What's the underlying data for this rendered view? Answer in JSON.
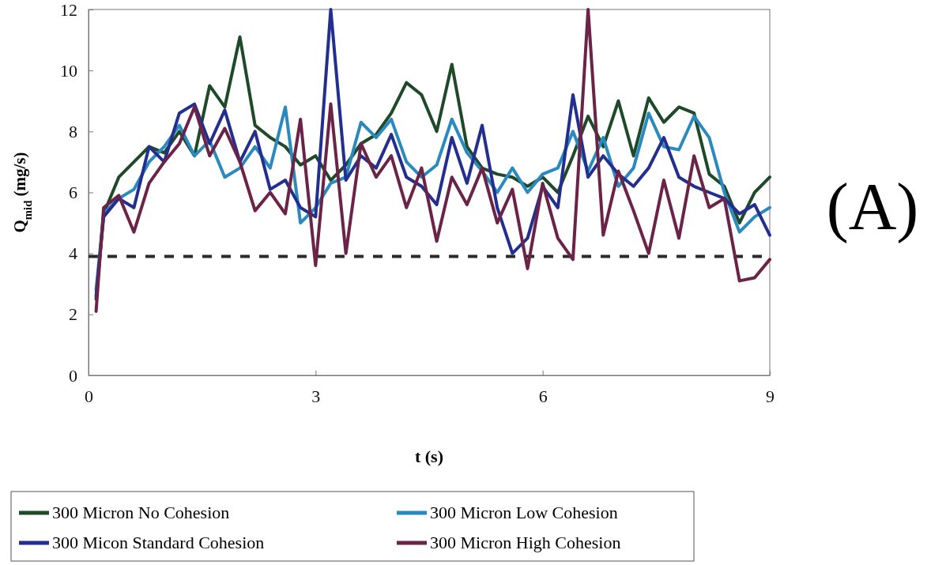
{
  "chart_data": {
    "type": "line",
    "xlabel": "t (s)",
    "ylabel": "Q$_{mid}$ (mg/s)",
    "x": [
      0.1,
      0.2,
      0.4,
      0.6,
      0.8,
      1.0,
      1.2,
      1.4,
      1.6,
      1.8,
      2.0,
      2.2,
      2.4,
      2.6,
      2.8,
      3.0,
      3.2,
      3.4,
      3.6,
      3.8,
      4.0,
      4.2,
      4.4,
      4.6,
      4.8,
      5.0,
      5.2,
      5.4,
      5.6,
      5.8,
      6.0,
      6.2,
      6.4,
      6.6,
      6.8,
      7.0,
      7.2,
      7.4,
      7.6,
      7.8,
      8.0,
      8.2,
      8.4,
      8.6,
      8.8,
      9.0
    ],
    "series": [
      {
        "name": "300 Micron No Cohesion",
        "color": "#1e4a2a",
        "values": [
          2.5,
          5.3,
          6.5,
          7.0,
          7.5,
          7.3,
          8.0,
          7.2,
          9.5,
          8.8,
          11.1,
          8.2,
          7.8,
          7.5,
          6.9,
          7.2,
          6.4,
          6.9,
          7.6,
          7.9,
          8.6,
          9.6,
          9.2,
          8.0,
          10.2,
          7.5,
          6.8,
          6.6,
          6.5,
          6.2,
          6.5,
          6.0,
          7.2,
          8.5,
          7.5,
          9.0,
          7.2,
          9.1,
          8.3,
          8.8,
          8.6,
          6.6,
          6.2,
          5.0,
          6.0,
          6.5
        ]
      },
      {
        "name": "300 Micron Low Cohesion",
        "color": "#2a8ac0",
        "values": [
          2.8,
          5.3,
          5.8,
          6.1,
          7.0,
          7.5,
          8.2,
          7.2,
          7.7,
          6.5,
          6.8,
          7.5,
          6.8,
          8.8,
          5.0,
          5.5,
          6.3,
          6.5,
          8.3,
          7.8,
          8.4,
          7.0,
          6.5,
          6.9,
          8.4,
          7.3,
          6.7,
          6.0,
          6.8,
          6.0,
          6.6,
          6.8,
          8.0,
          6.7,
          7.8,
          6.2,
          6.8,
          8.6,
          7.5,
          7.4,
          8.5,
          7.8,
          6.0,
          4.7,
          5.2,
          5.5
        ]
      },
      {
        "name": "300 Micon Standard Cohesion",
        "color": "#232f8f",
        "values": [
          2.6,
          5.2,
          5.8,
          5.5,
          7.5,
          7.0,
          8.6,
          8.9,
          7.6,
          8.7,
          7.0,
          8.0,
          6.1,
          6.4,
          5.5,
          5.2,
          12.0,
          6.4,
          7.2,
          6.8,
          7.9,
          6.5,
          6.2,
          5.6,
          7.8,
          6.3,
          8.2,
          5.5,
          4.0,
          4.5,
          6.2,
          5.5,
          9.2,
          6.5,
          7.2,
          6.6,
          6.2,
          6.8,
          7.8,
          6.5,
          6.2,
          6.0,
          5.8,
          5.3,
          5.6,
          4.6
        ]
      },
      {
        "name": "300 Micron High Cohesion",
        "color": "#6b2448",
        "values": [
          2.1,
          5.5,
          5.9,
          4.7,
          6.3,
          7.0,
          7.6,
          8.8,
          7.2,
          8.1,
          7.0,
          5.4,
          6.0,
          5.3,
          8.4,
          3.6,
          8.9,
          4.0,
          7.6,
          6.5,
          7.2,
          5.5,
          6.8,
          4.4,
          6.5,
          5.6,
          6.8,
          5.0,
          6.1,
          3.5,
          6.3,
          4.5,
          3.8,
          12.0,
          4.6,
          6.7,
          5.4,
          4.0,
          6.4,
          4.5,
          7.2,
          5.5,
          5.8,
          3.1,
          3.2,
          3.8
        ]
      }
    ],
    "xlim": [
      0,
      9
    ],
    "xticks": [
      0,
      3,
      6,
      9
    ],
    "ylim": [
      0,
      12
    ],
    "yticks": [
      0,
      2,
      4,
      6,
      8,
      10,
      12
    ],
    "ref_lines": [
      {
        "axis": "y",
        "value": 3.9,
        "color": "#2a2a2a",
        "line_style": "dashed"
      }
    ],
    "legend": "bottom",
    "annotations": [
      "(A)"
    ]
  }
}
